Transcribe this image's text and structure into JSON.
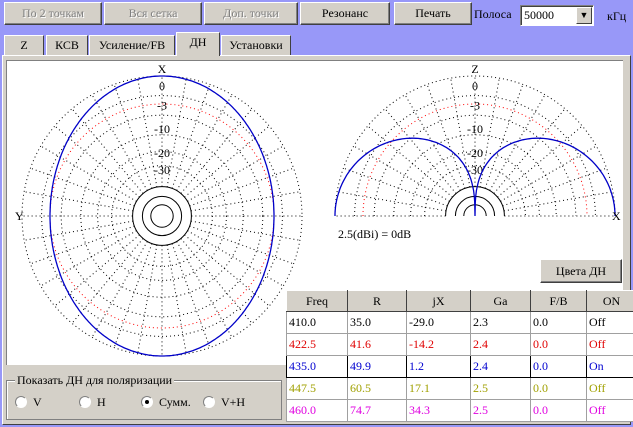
{
  "toolbar": {
    "btn_two_points": "По 2 точкам",
    "btn_all_grid": "Вся сетка",
    "btn_extra_points": "Доп. точки",
    "btn_resonance": "Резонанс",
    "btn_print": "Печать",
    "band_label": "Полоса",
    "band_value": "50000",
    "unit": "кГц"
  },
  "tabs": [
    "Z",
    "КСВ",
    "Усиление/FB",
    "ДН",
    "Установки"
  ],
  "active_tab": "ДН",
  "left_plot": {
    "top_label": "X",
    "side_label": "Y",
    "ring_labels": [
      "0",
      "-3",
      "-10",
      "-20",
      "-30"
    ]
  },
  "right_plot": {
    "top_label": "Z",
    "side_label": "X",
    "ring_labels": [
      "0",
      "-3",
      "-10",
      "-20",
      "-30"
    ],
    "caption": "2.5(dBi) = 0dB"
  },
  "colors_button": "Цвета ДН",
  "table": {
    "headers": [
      "Freq",
      "R",
      "jX",
      "Ga",
      "F/B",
      "ON"
    ],
    "rows": [
      {
        "cells": [
          "410.0",
          "35.0",
          "-29.0",
          "2.3",
          "0.0",
          "Off"
        ],
        "color": "#000000"
      },
      {
        "cells": [
          "422.5",
          "41.6",
          "-14.2",
          "2.4",
          "0.0",
          "Off"
        ],
        "color": "#e00000"
      },
      {
        "cells": [
          "435.0",
          "49.9",
          "1.2",
          "2.4",
          "0.0",
          "On"
        ],
        "color": "#0000d0"
      },
      {
        "cells": [
          "447.5",
          "60.5",
          "17.1",
          "2.5",
          "0.0",
          "Off"
        ],
        "color": "#a0a000"
      },
      {
        "cells": [
          "460.0",
          "74.7",
          "34.3",
          "2.5",
          "0.0",
          "Off"
        ],
        "color": "#e000e0"
      }
    ]
  },
  "polarization": {
    "title": "Показать ДН для поляризации",
    "options": [
      "V",
      "H",
      "Сумм.",
      "V+H"
    ],
    "selected": "Сумм."
  },
  "colors": {
    "pattern": "#0000c8",
    "minus3": "#ff0000",
    "grid": "#000000"
  }
}
